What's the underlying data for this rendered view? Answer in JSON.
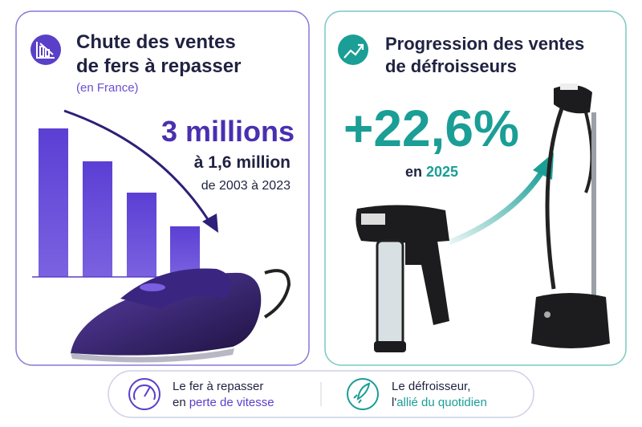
{
  "left_card": {
    "title_lines": [
      "Chute des ventes",
      "de fers à repasser"
    ],
    "subtitle": "(en France)",
    "headline": "3 millions",
    "detail_line1": "à 1,6 million",
    "detail_line2": "de 2003 à 2023"
  },
  "right_card": {
    "title_lines": [
      "Progression des ventes",
      "de défroisseurs"
    ],
    "headline": "+22,6%",
    "detail_prefix": "en",
    "detail_highlight": "2025"
  },
  "footer": {
    "left": {
      "line1": "Le fer à repasser",
      "line2_prefix": "en",
      "line2_highlight": "perte de vitesse"
    },
    "right": {
      "line1": "Le défroisseur,",
      "line2_prefix": "l'",
      "line2_highlight": "allié du quotidien"
    }
  }
}
